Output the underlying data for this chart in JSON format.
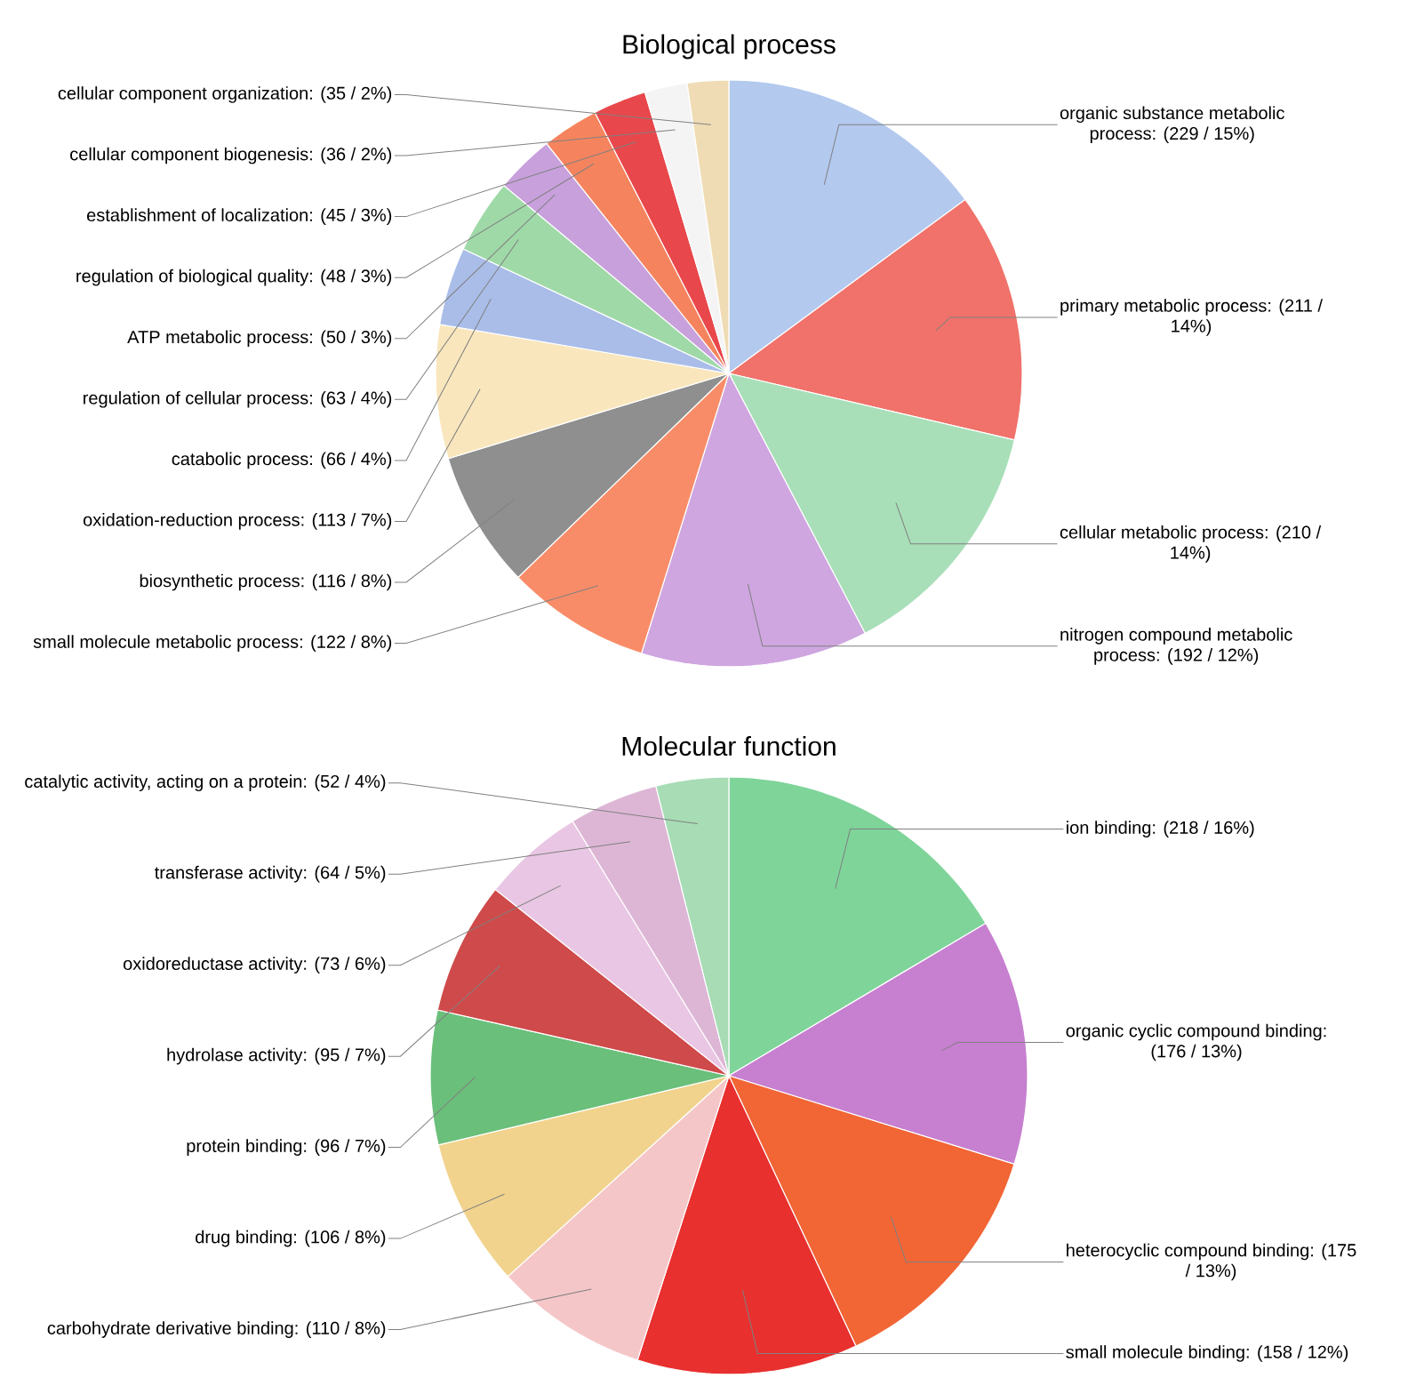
{
  "chart_data": [
    {
      "type": "pie",
      "title": "Biological process",
      "categories": [
        "organic substance metabolic process: (229 / 15%)",
        "primary metabolic process: (211 / 14%)",
        "cellular metabolic process: (210 / 14%)",
        "nitrogen compound metabolic process: (192 / 12%)",
        "small molecule metabolic process: (122 / 8%)",
        "biosynthetic process: (116 / 8%)",
        "oxidation-reduction process: (113 / 7%)",
        "catabolic process: (66 / 4%)",
        "regulation of cellular process: (63 / 4%)",
        "ATP metabolic process: (50 / 3%)",
        "regulation of biological quality: (48 / 3%)",
        "establishment of localization: (45 / 3%)",
        "cellular component biogenesis: (36 / 2%)",
        "cellular component organization: (35 / 2%)"
      ],
      "values": [
        229,
        211,
        210,
        192,
        122,
        116,
        113,
        66,
        63,
        50,
        48,
        45,
        36,
        35
      ],
      "colors": [
        "#b3c9ee",
        "#f0726a",
        "#a8dfb8",
        "#cfa6e0",
        "#f98c68",
        "#8f8f8f",
        "#f9e6bd",
        "#a9bde8",
        "#9fd9a8",
        "#c8a0dc",
        "#f5845e",
        "#e8474b",
        "#f4f4f4",
        "#efdcb5"
      ]
    },
    {
      "type": "pie",
      "title": "Molecular function",
      "categories": [
        "ion binding: (218 / 16%)",
        "organic cyclic compound binding: (176 / 13%)",
        "heterocyclic compound binding: (175 / 13%)",
        "small molecule binding: (158 / 12%)",
        "carbohydrate derivative binding: (110 / 8%)",
        "drug binding: (106 / 8%)",
        "protein binding: (96 / 7%)",
        "hydrolase activity: (95 / 7%)",
        "oxidoreductase activity: (73 / 6%)",
        "transferase activity: (64 / 5%)",
        "catalytic activity, acting on a protein: (52 / 4%)"
      ],
      "values": [
        218,
        176,
        175,
        158,
        110,
        106,
        96,
        95,
        73,
        64,
        52
      ],
      "colors": [
        "#7fd49a",
        "#c77fd0",
        "#f26535",
        "#e8302f",
        "#f5c6c8",
        "#f1d38e",
        "#6abf7a",
        "#cf4a4a",
        "#e9c6e3",
        "#ddb6d6",
        "#a7dcb5"
      ]
    }
  ]
}
